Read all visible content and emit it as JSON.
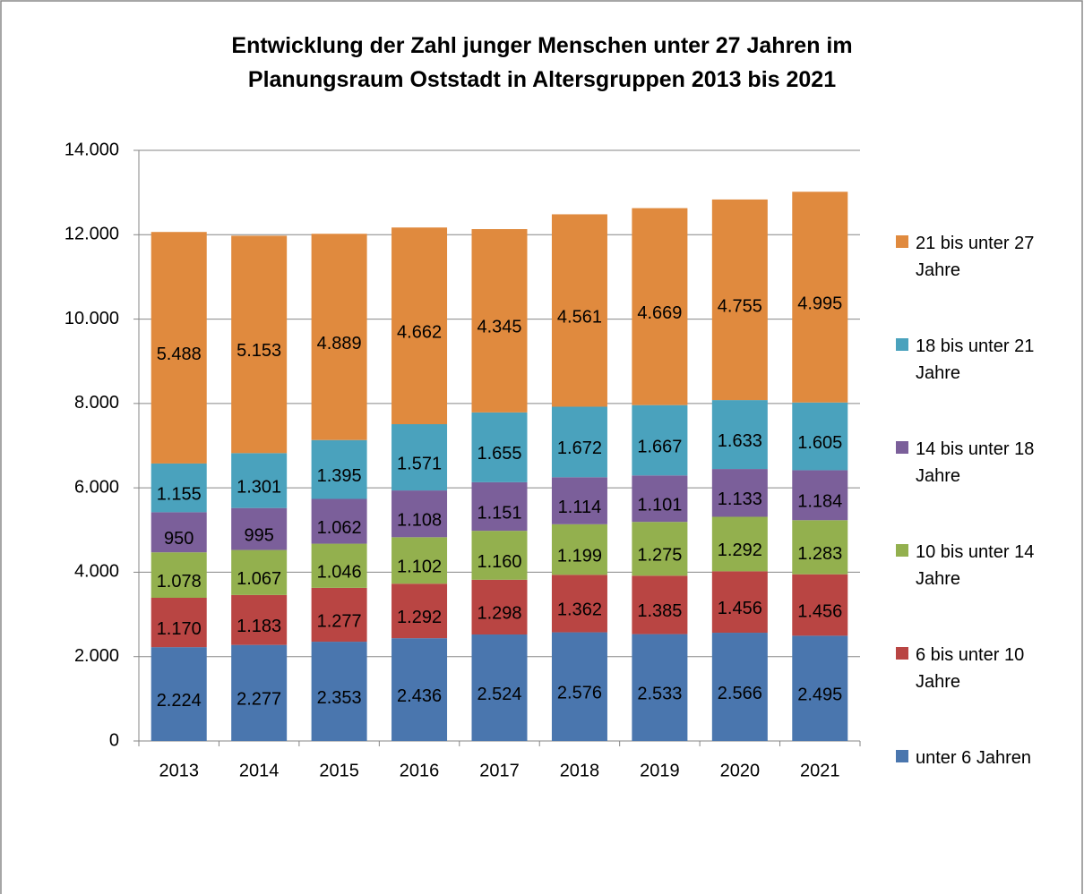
{
  "chart_data": {
    "type": "bar",
    "stacked": true,
    "title": "Entwicklung der Zahl junger Menschen unter 27 Jahren im Planungsraum Oststadt in Altersgruppen 2013 bis 2021",
    "categories": [
      "2013",
      "2014",
      "2015",
      "2016",
      "2017",
      "2018",
      "2019",
      "2020",
      "2021"
    ],
    "ylim": [
      0,
      14000
    ],
    "yticks": [
      0,
      {
        "value": 2000,
        "label": "2.000"
      },
      {
        "value": 4000,
        "label": "4.000"
      },
      {
        "value": 6000,
        "label": "6.000"
      },
      {
        "value": 8000,
        "label": "8.000"
      },
      {
        "value": 10000,
        "label": "10.000"
      },
      {
        "value": 12000,
        "label": "12.000"
      },
      {
        "value": 14000,
        "label": "14.000"
      }
    ],
    "grid": true,
    "legend": "right",
    "series": [
      {
        "name": "unter 6 Jahren",
        "color": "#4a76ae",
        "values": [
          2224,
          2277,
          2353,
          2436,
          2524,
          2576,
          2533,
          2566,
          2495
        ],
        "value_labels": [
          "2.224",
          "2.277",
          "2.353",
          "2.436",
          "2.524",
          "2.576",
          "2.533",
          "2.566",
          "2.495"
        ]
      },
      {
        "name": "6 bis unter 10 Jahre",
        "color": "#b94543",
        "values": [
          1170,
          1183,
          1277,
          1292,
          1298,
          1362,
          1385,
          1456,
          1456
        ],
        "value_labels": [
          "1.170",
          "1.183",
          "1.277",
          "1.292",
          "1.298",
          "1.362",
          "1.385",
          "1.456",
          "1.456"
        ]
      },
      {
        "name": "10 bis unter 14 Jahre",
        "color": "#93b04e",
        "values": [
          1078,
          1067,
          1046,
          1102,
          1160,
          1199,
          1275,
          1292,
          1283
        ],
        "value_labels": [
          "1.078",
          "1.067",
          "1.046",
          "1.102",
          "1.160",
          "1.199",
          "1.275",
          "1.292",
          "1.283"
        ]
      },
      {
        "name": "14 bis unter 18 Jahre",
        "color": "#7b5f9a",
        "values": [
          950,
          995,
          1062,
          1108,
          1151,
          1114,
          1101,
          1133,
          1184
        ],
        "value_labels": [
          "950",
          "995",
          "1.062",
          "1.108",
          "1.151",
          "1.114",
          "1.101",
          "1.133",
          "1.184"
        ]
      },
      {
        "name": "18 bis unter 21 Jahre",
        "color": "#4aa2bd",
        "values": [
          1155,
          1301,
          1395,
          1571,
          1655,
          1672,
          1667,
          1633,
          1605
        ],
        "value_labels": [
          "1.155",
          "1.301",
          "1.395",
          "1.571",
          "1.655",
          "1.672",
          "1.667",
          "1.633",
          "1.605"
        ]
      },
      {
        "name": "21 bis unter 27 Jahre",
        "color": "#e08a3e",
        "values": [
          5488,
          5153,
          4889,
          4662,
          4345,
          4561,
          4669,
          4755,
          4995
        ],
        "value_labels": [
          "5.488",
          "5.153",
          "4.889",
          "4.662",
          "4.345",
          "4.561",
          "4.669",
          "4.755",
          "4.995"
        ]
      }
    ]
  }
}
